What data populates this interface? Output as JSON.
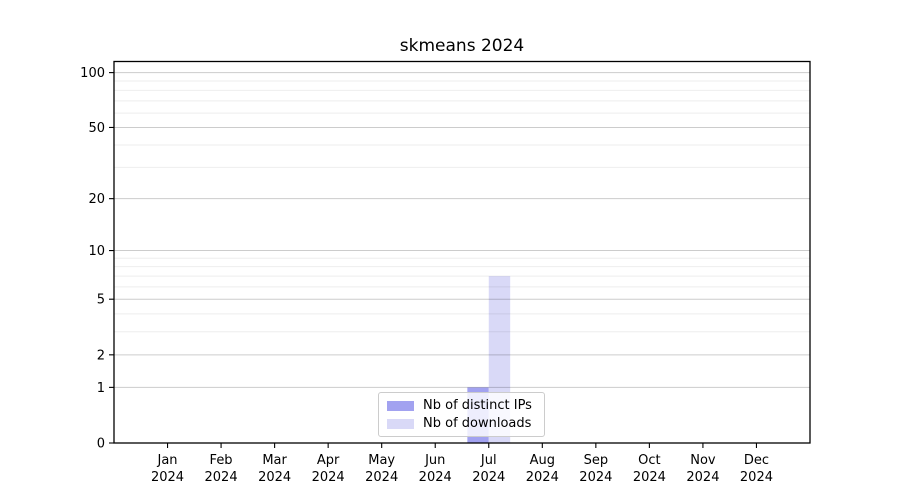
{
  "chart_data": {
    "type": "bar",
    "title": "skmeans 2024",
    "x_categories": [
      {
        "month": "Jan",
        "year": "2024"
      },
      {
        "month": "Feb",
        "year": "2024"
      },
      {
        "month": "Mar",
        "year": "2024"
      },
      {
        "month": "Apr",
        "year": "2024"
      },
      {
        "month": "May",
        "year": "2024"
      },
      {
        "month": "Jun",
        "year": "2024"
      },
      {
        "month": "Jul",
        "year": "2024"
      },
      {
        "month": "Aug",
        "year": "2024"
      },
      {
        "month": "Sep",
        "year": "2024"
      },
      {
        "month": "Oct",
        "year": "2024"
      },
      {
        "month": "Nov",
        "year": "2024"
      },
      {
        "month": "Dec",
        "year": "2024"
      }
    ],
    "series": [
      {
        "name": "Nb of distinct IPs",
        "color": "#a2a2f0",
        "values": [
          0,
          0,
          0,
          0,
          0,
          0,
          1,
          0,
          0,
          0,
          0,
          0
        ]
      },
      {
        "name": "Nb of downloads",
        "color": "#d9d9f7",
        "values": [
          0,
          0,
          0,
          0,
          0,
          0,
          7,
          0,
          0,
          0,
          0,
          0
        ]
      }
    ],
    "y_axis": {
      "scale": "log1p",
      "tick_values": [
        0,
        1,
        2,
        5,
        10,
        20,
        50,
        100
      ],
      "tick_labels": [
        "0",
        "1",
        "2",
        "5",
        "10",
        "20",
        "50",
        "100"
      ],
      "minor_gridline_values": [
        1,
        2,
        3,
        4,
        5,
        6,
        7,
        8,
        9,
        10,
        20,
        30,
        40,
        50,
        60,
        70,
        80,
        90,
        100
      ],
      "ylim": [
        0,
        115
      ]
    },
    "grid": true,
    "legend_position": "lower center",
    "colors": {
      "axis": "#000000",
      "major_grid": "rgba(0,0,0,0.20)",
      "minor_grid": "rgba(0,0,0,0.07)",
      "tick_label": "#000000"
    }
  }
}
